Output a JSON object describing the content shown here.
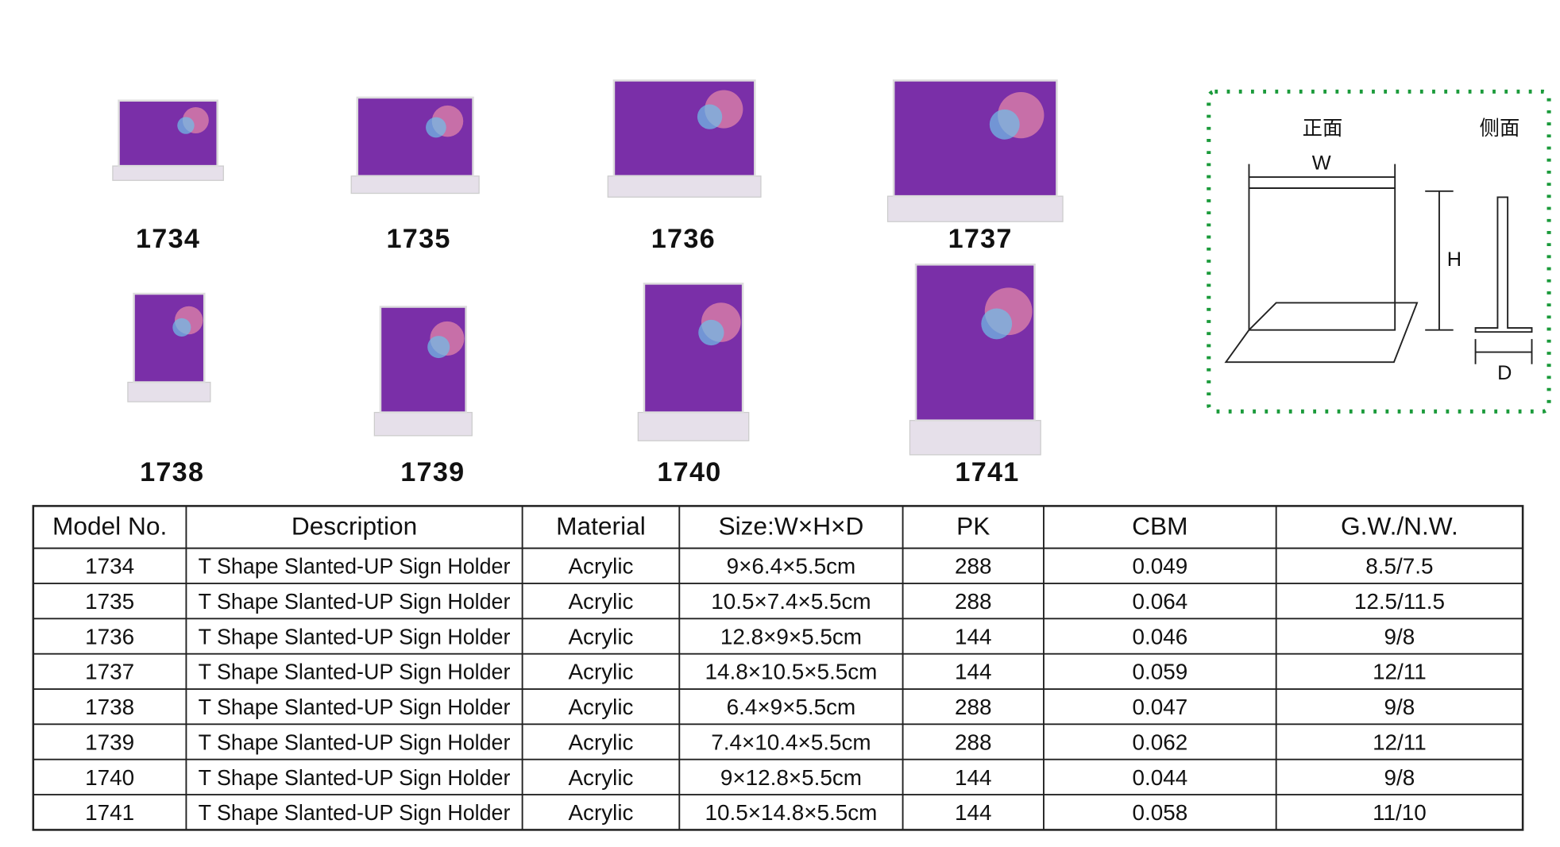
{
  "products": [
    {
      "model": "1734"
    },
    {
      "model": "1735"
    },
    {
      "model": "1736"
    },
    {
      "model": "1737"
    },
    {
      "model": "1738"
    },
    {
      "model": "1739"
    },
    {
      "model": "1740"
    },
    {
      "model": "1741"
    }
  ],
  "diagram": {
    "front": "正面",
    "side": "侧面",
    "w": "W",
    "h": "H",
    "d": "D"
  },
  "table": {
    "headers": [
      "Model No.",
      "Description",
      "Material",
      "Size:W×H×D",
      "PK",
      "CBM",
      "G.W./N.W."
    ],
    "rows": [
      [
        "1734",
        "T Shape Slanted-UP Sign Holder",
        "Acrylic",
        "9×6.4×5.5cm",
        "288",
        "0.049",
        "8.5/7.5"
      ],
      [
        "1735",
        "T Shape Slanted-UP Sign Holder",
        "Acrylic",
        "10.5×7.4×5.5cm",
        "288",
        "0.064",
        "12.5/11.5"
      ],
      [
        "1736",
        "T Shape Slanted-UP Sign Holder",
        "Acrylic",
        "12.8×9×5.5cm",
        "144",
        "0.046",
        "9/8"
      ],
      [
        "1737",
        "T Shape Slanted-UP Sign Holder",
        "Acrylic",
        "14.8×10.5×5.5cm",
        "144",
        "0.059",
        "12/11"
      ],
      [
        "1738",
        "T Shape Slanted-UP Sign Holder",
        "Acrylic",
        "6.4×9×5.5cm",
        "288",
        "0.047",
        "9/8"
      ],
      [
        "1739",
        "T Shape Slanted-UP Sign Holder",
        "Acrylic",
        "7.4×10.4×5.5cm",
        "288",
        "0.062",
        "12/11"
      ],
      [
        "1740",
        "T Shape Slanted-UP Sign Holder",
        "Acrylic",
        "9×12.8×5.5cm",
        "144",
        "0.044",
        "9/8"
      ],
      [
        "1741",
        "T Shape Slanted-UP Sign Holder",
        "Acrylic",
        "10.5×14.8×5.5cm",
        "144",
        "0.058",
        "11/10"
      ]
    ]
  }
}
